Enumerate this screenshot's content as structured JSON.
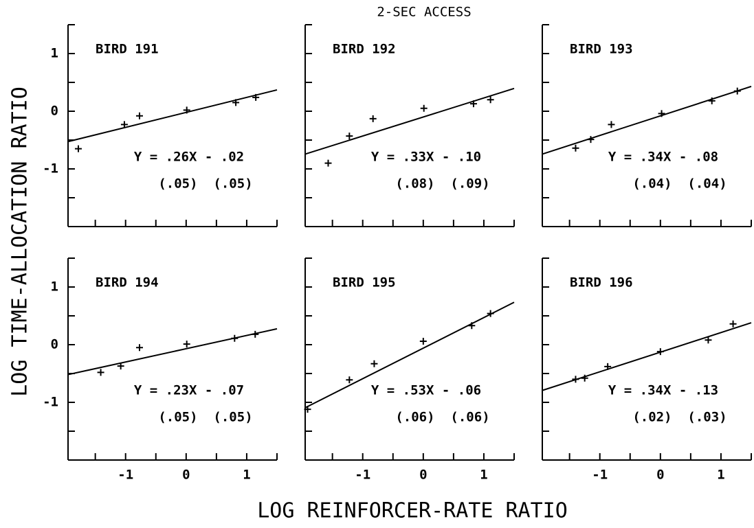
{
  "title": "2-SEC ACCESS",
  "xlabel": "LOG REINFORCER-RATE RATIO",
  "ylabel": "LOG TIME-ALLOCATION RATIO",
  "chart_data": [
    {
      "type": "scatter",
      "title": "BIRD 191",
      "x": [
        -1.78,
        -1.02,
        -0.77,
        0.01,
        0.82,
        1.15
      ],
      "values": [
        -0.65,
        -0.23,
        -0.08,
        0.02,
        0.15,
        0.24
      ],
      "fit": {
        "slope": 0.26,
        "intercept": -0.02
      },
      "equation": "Y = .26X - .02",
      "errors": "(.05)  (.05)",
      "xlim": [
        -1.95,
        1.5
      ],
      "ylim": [
        -2,
        1.5
      ],
      "xticks": [
        -1,
        0,
        1
      ],
      "yticks": [
        -1,
        0,
        1
      ],
      "xminor": [
        -1.5,
        -0.5,
        0.5,
        1.5
      ],
      "yminor": [
        -1.5,
        -0.5,
        0.5,
        1.5
      ],
      "show_xtick_labels": false,
      "show_ytick_labels": true
    },
    {
      "type": "scatter",
      "title": "BIRD 192",
      "x": [
        -1.57,
        -1.22,
        -0.83,
        0.01,
        0.83,
        1.11
      ],
      "values": [
        -0.9,
        -0.43,
        -0.13,
        0.05,
        0.13,
        0.2
      ],
      "fit": {
        "slope": 0.33,
        "intercept": -0.1
      },
      "equation": "Y = .33X - .10",
      "errors": "(.08)  (.09)",
      "xlim": [
        -1.95,
        1.5
      ],
      "ylim": [
        -2,
        1.5
      ],
      "xticks": [
        -1,
        0,
        1
      ],
      "yticks": [
        -1,
        0,
        1
      ],
      "xminor": [
        -1.5,
        -0.5,
        0.5,
        1.5
      ],
      "yminor": [
        -1.5,
        -0.5,
        0.5,
        1.5
      ],
      "show_xtick_labels": false,
      "show_ytick_labels": false
    },
    {
      "type": "scatter",
      "title": "BIRD 193",
      "x": [
        -1.4,
        -1.15,
        -0.81,
        0.02,
        0.85,
        1.27
      ],
      "values": [
        -0.64,
        -0.49,
        -0.23,
        -0.04,
        0.18,
        0.35
      ],
      "fit": {
        "slope": 0.34,
        "intercept": -0.08
      },
      "equation": "Y = .34X - .08",
      "errors": "(.04)  (.04)",
      "xlim": [
        -1.95,
        1.5
      ],
      "ylim": [
        -2,
        1.5
      ],
      "xticks": [
        -1,
        0,
        1
      ],
      "yticks": [
        -1,
        0,
        1
      ],
      "xminor": [
        -1.5,
        -0.5,
        0.5,
        1.5
      ],
      "yminor": [
        -1.5,
        -0.5,
        0.5,
        1.5
      ],
      "show_xtick_labels": false,
      "show_ytick_labels": false
    },
    {
      "type": "scatter",
      "title": "BIRD 194",
      "x": [
        -1.41,
        -1.08,
        -0.77,
        0.01,
        0.8,
        1.14
      ],
      "values": [
        -0.48,
        -0.37,
        -0.05,
        0.01,
        0.11,
        0.18
      ],
      "fit": {
        "slope": 0.23,
        "intercept": -0.07
      },
      "equation": "Y = .23X - .07",
      "errors": "(.05)  (.05)",
      "xlim": [
        -1.95,
        1.5
      ],
      "ylim": [
        -2,
        1.5
      ],
      "xticks": [
        -1,
        0,
        1
      ],
      "yticks": [
        -1,
        0,
        1
      ],
      "xminor": [
        -1.5,
        -0.5,
        0.5,
        1.5
      ],
      "yminor": [
        -1.5,
        -0.5,
        0.5,
        1.5
      ],
      "show_xtick_labels": true,
      "show_ytick_labels": true
    },
    {
      "type": "scatter",
      "title": "BIRD 195",
      "x": [
        -1.91,
        -1.22,
        -0.81,
        0,
        0.8,
        1.11
      ],
      "values": [
        -1.12,
        -0.61,
        -0.33,
        0.06,
        0.33,
        0.54
      ],
      "fit": {
        "slope": 0.53,
        "intercept": -0.06
      },
      "equation": "Y = .53X - .06",
      "errors": "(.06)  (.06)",
      "xlim": [
        -1.95,
        1.5
      ],
      "ylim": [
        -2,
        1.5
      ],
      "xticks": [
        -1,
        0,
        1
      ],
      "yticks": [
        -1,
        0,
        1
      ],
      "xminor": [
        -1.5,
        -0.5,
        0.5,
        1.5
      ],
      "yminor": [
        -1.5,
        -0.5,
        0.5,
        1.5
      ],
      "show_xtick_labels": true,
      "show_ytick_labels": false
    },
    {
      "type": "scatter",
      "title": "BIRD 196",
      "x": [
        -1.4,
        -1.25,
        -0.87,
        0,
        0.79,
        1.2
      ],
      "values": [
        -0.6,
        -0.58,
        -0.38,
        -0.12,
        0.08,
        0.36
      ],
      "fit": {
        "slope": 0.34,
        "intercept": -0.13
      },
      "equation": "Y = .34X - .13",
      "errors": "(.02)  (.03)",
      "xlim": [
        -1.95,
        1.5
      ],
      "ylim": [
        -2,
        1.5
      ],
      "xticks": [
        -1,
        0,
        1
      ],
      "yticks": [
        -1,
        0,
        1
      ],
      "xminor": [
        -1.5,
        -0.5,
        0.5,
        1.5
      ],
      "yminor": [
        -1.5,
        -0.5,
        0.5,
        1.5
      ],
      "show_xtick_labels": true,
      "show_ytick_labels": false
    }
  ]
}
